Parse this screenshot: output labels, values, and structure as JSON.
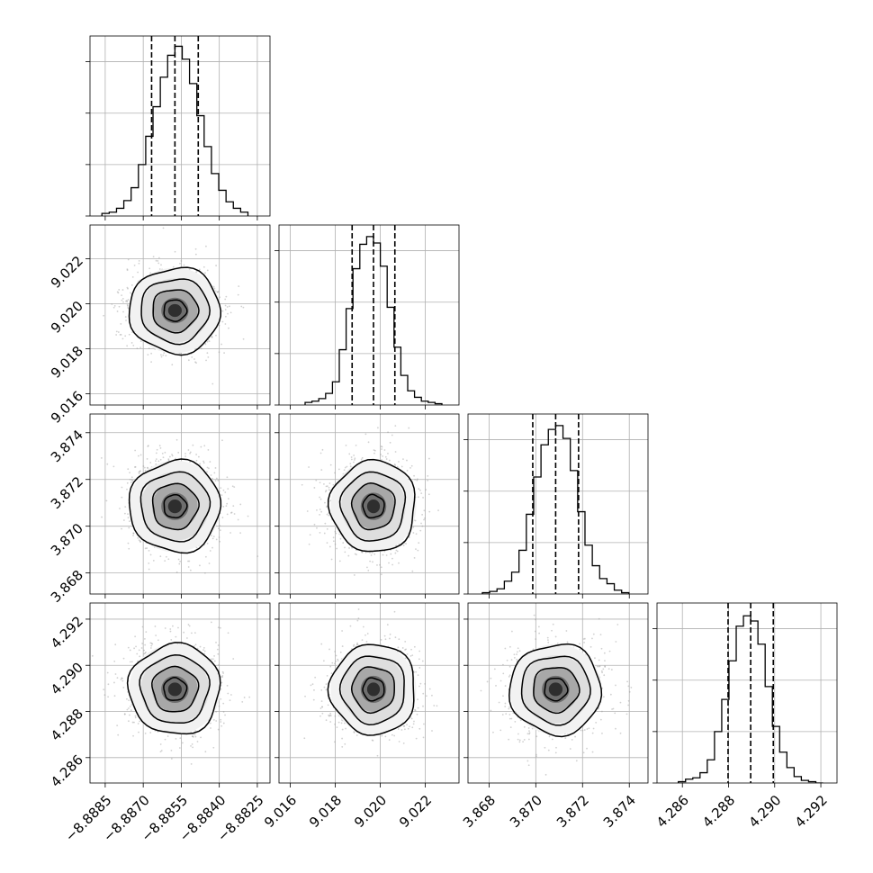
{
  "chart_data": {
    "type": "corner",
    "parameters": [
      {
        "range": [
          -8.8891,
          -8.882
        ],
        "mean": -8.88575,
        "sigma": 0.0009,
        "quantiles": [
          -8.88667,
          -8.88575,
          -8.88483
        ],
        "ticks": [
          -8.8885,
          -8.887,
          -8.8855,
          -8.884,
          -8.8825
        ],
        "tick_labels": [
          "−8.8885",
          "−8.8870",
          "−8.8855",
          "−8.8840",
          "−8.8825"
        ]
      },
      {
        "range": [
          9.0155,
          9.0235
        ],
        "mean": 9.0197,
        "sigma": 0.00095,
        "quantiles": [
          9.01875,
          9.0197,
          9.02065
        ],
        "ticks": [
          9.016,
          9.018,
          9.02,
          9.022
        ],
        "tick_labels": [
          "9.016",
          "9.018",
          "9.020",
          "9.022"
        ]
      },
      {
        "range": [
          3.8671,
          3.8748
        ],
        "mean": 3.87085,
        "sigma": 0.00098,
        "quantiles": [
          3.86987,
          3.87085,
          3.87183
        ],
        "ticks": [
          3.868,
          3.87,
          3.872,
          3.874
        ],
        "tick_labels": [
          "3.868",
          "3.870",
          "3.872",
          "3.874"
        ]
      },
      {
        "range": [
          4.2849,
          4.2927
        ],
        "mean": 4.28896,
        "sigma": 0.00098,
        "quantiles": [
          4.28798,
          4.28896,
          4.28994
        ],
        "ticks": [
          4.286,
          4.288,
          4.29,
          4.292
        ],
        "tick_labels": [
          "4.286",
          "4.288",
          "4.290",
          "4.292"
        ]
      }
    ],
    "histograms": [
      [
        2,
        3,
        6,
        12,
        22,
        40,
        62,
        85,
        108,
        125,
        132,
        122,
        103,
        78,
        54,
        33,
        20,
        11,
        6,
        3
      ],
      [
        2,
        3,
        5,
        9,
        18,
        43,
        75,
        106,
        125,
        131,
        126,
        108,
        76,
        45,
        23,
        11,
        6,
        3,
        2,
        1
      ],
      [
        1,
        2,
        4,
        10,
        17,
        34,
        62,
        91,
        116,
        128,
        131,
        121,
        96,
        64,
        38,
        22,
        12,
        8,
        3,
        1
      ],
      [
        1,
        3,
        4,
        8,
        18,
        40,
        65,
        95,
        122,
        130,
        126,
        108,
        75,
        44,
        24,
        12,
        5,
        2,
        1,
        0
      ]
    ],
    "histogram_ylim_top": 140,
    "histogram_ytick_values": [
      40,
      80,
      120
    ],
    "quantile_style": "dashed",
    "correlation": 0.0,
    "contour_levels_sigma": [
      0.5,
      1.0,
      1.5,
      2.0
    ],
    "grid": true
  }
}
